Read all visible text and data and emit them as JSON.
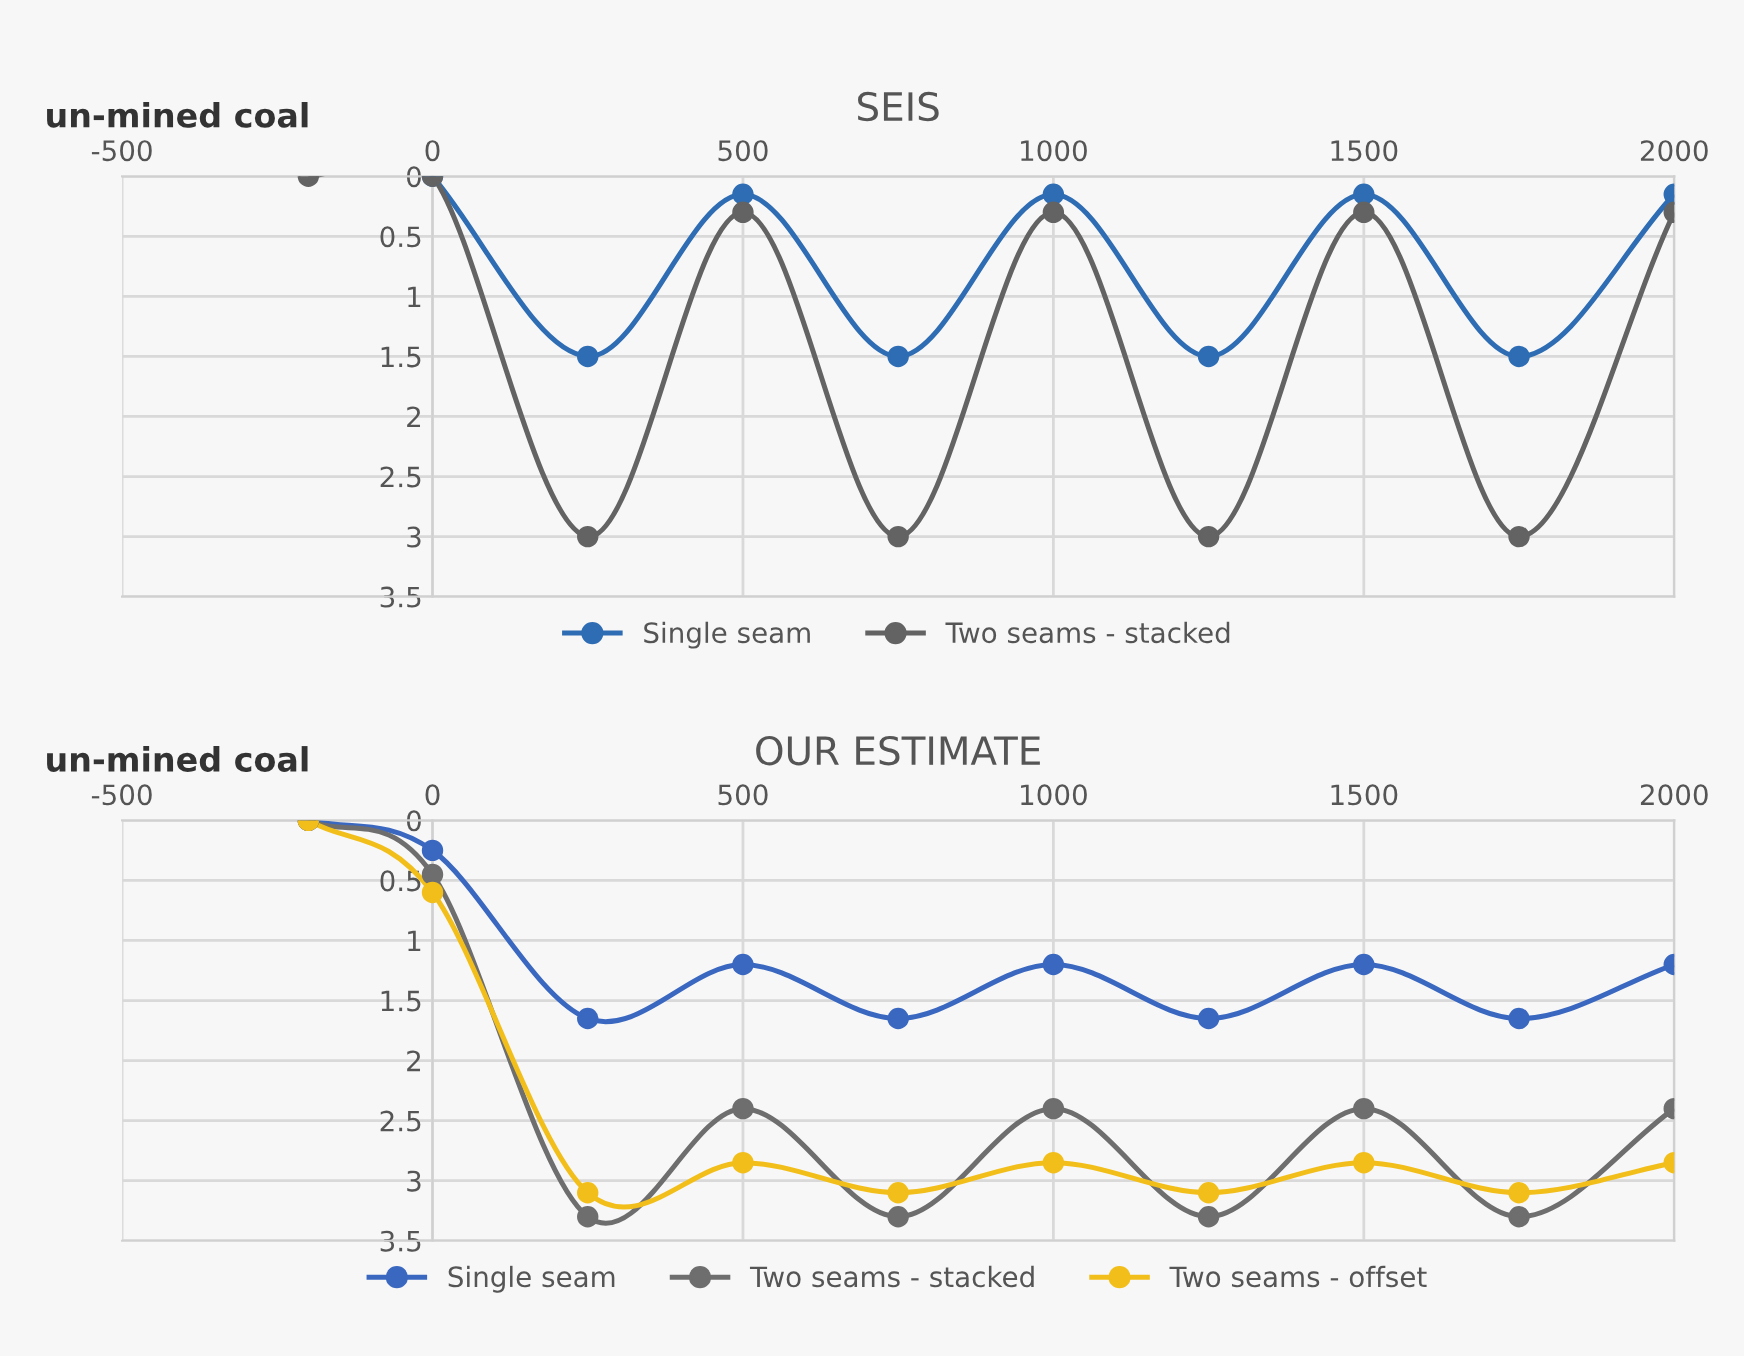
{
  "chart_data": [
    {
      "type": "line",
      "title": "SEIS",
      "ylabel": "un-mined coal",
      "xlim": [
        -500,
        2000
      ],
      "xticks": [
        -500,
        0,
        500,
        1000,
        1500,
        2000
      ],
      "ylim": [
        3.5,
        0
      ],
      "yticks": [
        0,
        0.5,
        1,
        1.5,
        2,
        2.5,
        3,
        3.5
      ],
      "grid": true,
      "legend": "bottom",
      "marker": "circle",
      "line_style": "solid",
      "series": [
        {
          "name": "Single seam",
          "color": "#2e6db4",
          "x": [
            0,
            250,
            500,
            750,
            1000,
            1250,
            1500,
            1750,
            2000
          ],
          "values": [
            0,
            1.5,
            0.15,
            1.5,
            0.15,
            1.5,
            0.15,
            1.5,
            0.15
          ]
        },
        {
          "name": "Two seams - stacked",
          "color": "#636363",
          "x": [
            -200,
            0,
            250,
            500,
            750,
            1000,
            1250,
            1500,
            1750,
            2000
          ],
          "values": [
            0,
            0,
            3,
            0.3,
            3,
            0.3,
            3,
            0.3,
            3,
            0.3
          ]
        }
      ]
    },
    {
      "type": "line",
      "title": "OUR ESTIMATE",
      "ylabel": "un-mined coal",
      "xlim": [
        -500,
        2000
      ],
      "xticks": [
        -500,
        0,
        500,
        1000,
        1500,
        2000
      ],
      "ylim": [
        3.5,
        0
      ],
      "yticks": [
        0,
        0.5,
        1,
        1.5,
        2,
        2.5,
        3,
        3.5
      ],
      "grid": true,
      "legend": "bottom",
      "marker": "circle",
      "line_style": "solid",
      "series": [
        {
          "name": "Single seam",
          "color": "#3a68c0",
          "x": [
            -200,
            0,
            250,
            500,
            750,
            1000,
            1250,
            1500,
            1750,
            2000
          ],
          "values": [
            0,
            0.25,
            1.65,
            1.2,
            1.65,
            1.2,
            1.65,
            1.2,
            1.65,
            1.2
          ]
        },
        {
          "name": "Two seams - stacked",
          "color": "#6e6e6e",
          "x": [
            -200,
            0,
            250,
            500,
            750,
            1000,
            1250,
            1500,
            1750,
            2000
          ],
          "values": [
            0,
            0.45,
            3.3,
            2.4,
            3.3,
            2.4,
            3.3,
            2.4,
            3.3,
            2.4
          ]
        },
        {
          "name": "Two seams - offset",
          "color": "#f2be1a",
          "x": [
            -200,
            0,
            250,
            500,
            750,
            1000,
            1250,
            1500,
            1750,
            2000
          ],
          "values": [
            0,
            0.6,
            3.1,
            2.85,
            3.1,
            2.85,
            3.1,
            2.85,
            3.1,
            2.85
          ]
        }
      ]
    }
  ]
}
